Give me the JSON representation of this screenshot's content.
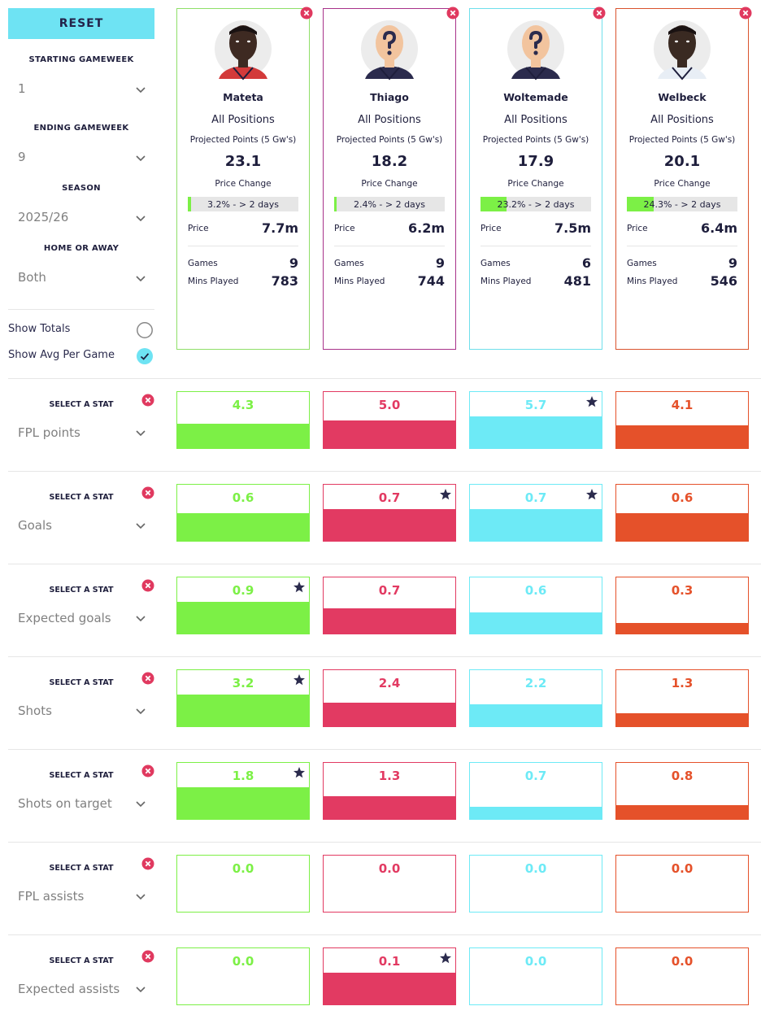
{
  "sidebar": {
    "reset": "RESET",
    "filters": [
      {
        "label": "STARTING GAMEWEEK",
        "value": "1"
      },
      {
        "label": "ENDING GAMEWEEK",
        "value": "9"
      },
      {
        "label": "SEASON",
        "value": "2025/26"
      },
      {
        "label": "HOME OR AWAY",
        "value": "Both"
      }
    ],
    "toggles": [
      {
        "label": "Show Totals",
        "checked": false
      },
      {
        "label": "Show Avg Per Game",
        "checked": true
      }
    ]
  },
  "card_labels": {
    "projected": "Projected Points (5 Gw's)",
    "price_change": "Price Change",
    "price": "Price",
    "games": "Games",
    "mins": "Mins Played"
  },
  "players": [
    {
      "name": "Mateta",
      "position": "All Positions",
      "projected": "23.1",
      "price_change": 3.2,
      "price_change_label": "3.2% - > 2 days",
      "price": "7.7m",
      "games": "9",
      "mins": "783",
      "color": "#7cf046",
      "border": "#8fdf68",
      "skin": "#3e2a22",
      "shirt": "#d33a3a",
      "unknown": false
    },
    {
      "name": "Thiago",
      "position": "All Positions",
      "projected": "18.2",
      "price_change": 2.4,
      "price_change_label": "2.4% - > 2 days",
      "price": "6.2m",
      "games": "9",
      "mins": "744",
      "color": "#e23a62",
      "border": "#a8328a",
      "skin": "#f2c49e",
      "shirt": "#2b2b4d",
      "unknown": true
    },
    {
      "name": "Woltemade",
      "position": "All Positions",
      "projected": "17.9",
      "price_change": 23.2,
      "price_change_label": "23.2% - > 2 days",
      "price": "7.5m",
      "games": "6",
      "mins": "481",
      "color": "#6deaf6",
      "border": "#6fdfeb",
      "skin": "#f2c49e",
      "shirt": "#2b2b4d",
      "unknown": true
    },
    {
      "name": "Welbeck",
      "position": "All Positions",
      "projected": "20.1",
      "price_change": 24.3,
      "price_change_label": "24.3% - > 2 days",
      "price": "6.4m",
      "games": "9",
      "mins": "546",
      "color": "#e5512a",
      "border": "#d9532d",
      "skin": "#3a2a22",
      "shirt": "#e8eef5",
      "unknown": false
    }
  ],
  "select_label": "SELECT A STAT",
  "stats": [
    {
      "stat": "FPL points",
      "values": [
        4.3,
        5.0,
        5.7,
        4.1
      ],
      "value_labels": [
        "4.3",
        "5.0",
        "5.7",
        "4.1"
      ],
      "best": [
        false,
        false,
        true,
        false
      ]
    },
    {
      "stat": "Goals",
      "values": [
        0.6,
        0.7,
        0.7,
        0.6
      ],
      "value_labels": [
        "0.6",
        "0.7",
        "0.7",
        "0.6"
      ],
      "best": [
        false,
        true,
        true,
        false
      ]
    },
    {
      "stat": "Expected goals",
      "values": [
        0.9,
        0.7,
        0.6,
        0.3
      ],
      "value_labels": [
        "0.9",
        "0.7",
        "0.6",
        "0.3"
      ],
      "best": [
        true,
        false,
        false,
        false
      ]
    },
    {
      "stat": "Shots",
      "values": [
        3.2,
        2.4,
        2.2,
        1.3
      ],
      "value_labels": [
        "3.2",
        "2.4",
        "2.2",
        "1.3"
      ],
      "best": [
        true,
        false,
        false,
        false
      ]
    },
    {
      "stat": "Shots on target",
      "values": [
        1.8,
        1.3,
        0.7,
        0.8
      ],
      "value_labels": [
        "1.8",
        "1.3",
        "0.7",
        "0.8"
      ],
      "best": [
        true,
        false,
        false,
        false
      ]
    },
    {
      "stat": "FPL assists",
      "values": [
        0.0,
        0.0,
        0.0,
        0.0
      ],
      "value_labels": [
        "0.0",
        "0.0",
        "0.0",
        "0.0"
      ],
      "best": [
        false,
        false,
        false,
        false
      ]
    },
    {
      "stat": "Expected assists",
      "values": [
        0.0,
        0.1,
        0.0,
        0.0
      ],
      "value_labels": [
        "0.0",
        "0.1",
        "0.0",
        "0.0"
      ],
      "best": [
        false,
        true,
        false,
        false
      ]
    }
  ]
}
